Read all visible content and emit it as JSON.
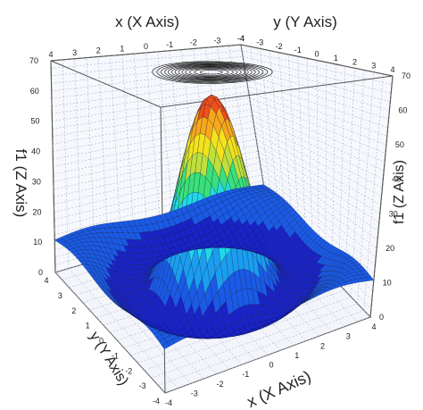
{
  "chart_data": {
    "type": "surface3d",
    "function_name": "f1",
    "xlabel": "x (X Axis)",
    "ylabel": "y (Y Axis)",
    "zlabel": "f1 (Z Axis)",
    "top_xlabel": "x (X Axis)",
    "top_ylabel": "y (Y Axis)",
    "xlim": [
      -4,
      4
    ],
    "ylim": [
      -4,
      4
    ],
    "zlim": [
      0,
      70
    ],
    "x_ticks": [
      -4,
      -3,
      -2,
      -1,
      0,
      1,
      2,
      3,
      4
    ],
    "y_ticks": [
      -4,
      -3,
      -2,
      -1,
      0,
      1,
      2,
      3,
      4
    ],
    "z_ticks": [
      0,
      10,
      20,
      30,
      40,
      50,
      60,
      70
    ],
    "top_x_ticks": [
      4,
      3,
      2,
      1,
      0,
      -1,
      -2,
      -3,
      -4
    ],
    "top_y_ticks": [
      -4,
      -3,
      -2,
      -1,
      0,
      1,
      2,
      3,
      4
    ],
    "surface_peak": {
      "x": 0,
      "y": 0,
      "z": 63
    },
    "base_level": 10,
    "grid_lines": true,
    "top_contour_projection": true,
    "colormap": [
      "#1a22c8",
      "#1a5ae6",
      "#1b9ef0",
      "#22d8e8",
      "#3ae07a",
      "#bde03a",
      "#f4e21c",
      "#f6a81a",
      "#f0501a",
      "#d81a1a"
    ]
  }
}
